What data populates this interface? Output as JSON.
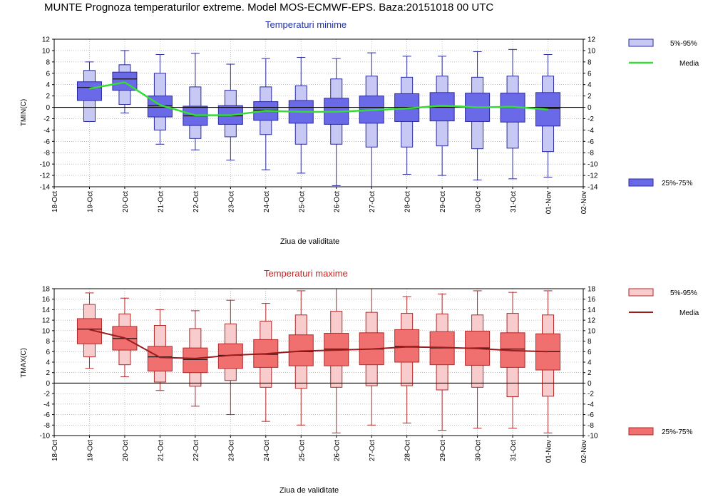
{
  "title": "MUNTE  Prognoza temperaturilor extreme.  Model MOS-ECMWF-EPS. Baza:20151018 00 UTC",
  "colors": {
    "min_light": "#c8c8f4",
    "min_dark": "#6a6ae8",
    "min_stroke": "#2a2a9e",
    "min_mean": "#33dd33",
    "max_light": "#f8cccc",
    "max_dark": "#f07070",
    "max_stroke": "#b02828",
    "max_mean": "#9a1c1c",
    "zero_line": "#000000",
    "grid": "#999999"
  },
  "chart_data": [
    {
      "type": "boxplot",
      "title": "Temperaturi minime",
      "xlabel": "Ziua de validitate",
      "ylabel": "TMIN(C)",
      "ylim": [
        -14,
        12
      ],
      "yticks": [
        12,
        10,
        8,
        6,
        4,
        2,
        0,
        -2,
        -4,
        -6,
        -8,
        -10,
        -12,
        -14
      ],
      "xticks": [
        "18-Oct",
        "19-Oct",
        "20-Oct",
        "21-Oct",
        "22-Oct",
        "23-Oct",
        "24-Oct",
        "25-Oct",
        "26-Oct",
        "27-Oct",
        "28-Oct",
        "29-Oct",
        "30-Oct",
        "31-Oct",
        "01-Nov",
        "02-Nov"
      ],
      "grid": true,
      "legend": [
        {
          "label": "5%-95%",
          "position": "top-right"
        },
        {
          "label": "Media",
          "position": "top-right"
        },
        {
          "label": "25%-75%",
          "position": "bottom-right"
        }
      ],
      "boxes": [
        {
          "day": "19-Oct",
          "p5": -2.5,
          "p25": 1.2,
          "median": 3.5,
          "p75": 4.5,
          "p95": 6.5,
          "min": -2.5,
          "max": 8.0,
          "mean": 3.3
        },
        {
          "day": "20-Oct",
          "p5": 0.5,
          "p25": 3.0,
          "median": 5.0,
          "p75": 6.2,
          "p95": 7.5,
          "min": -1.0,
          "max": 10.0,
          "mean": 4.4
        },
        {
          "day": "21-Oct",
          "p5": -4.0,
          "p25": -1.7,
          "median": 0.3,
          "p75": 2.0,
          "p95": 6.0,
          "min": -6.5,
          "max": 9.3,
          "mean": 0.4
        },
        {
          "day": "22-Oct",
          "p5": -5.5,
          "p25": -3.2,
          "median": -1.5,
          "p75": 0.2,
          "p95": 3.6,
          "min": -7.5,
          "max": 9.5,
          "mean": -1.4
        },
        {
          "day": "23-Oct",
          "p5": -5.2,
          "p25": -3.0,
          "median": -1.5,
          "p75": 0.3,
          "p95": 3.0,
          "min": -9.3,
          "max": 7.6,
          "mean": -1.4
        },
        {
          "day": "24-Oct",
          "p5": -4.8,
          "p25": -2.3,
          "median": -0.5,
          "p75": 1.0,
          "p95": 3.6,
          "min": -11.0,
          "max": 8.6,
          "mean": -0.6
        },
        {
          "day": "25-Oct",
          "p5": -6.5,
          "p25": -2.8,
          "median": -0.8,
          "p75": 1.2,
          "p95": 3.8,
          "min": -11.6,
          "max": 8.8,
          "mean": -0.8
        },
        {
          "day": "26-Oct",
          "p5": -6.5,
          "p25": -3.0,
          "median": -0.8,
          "p75": 1.6,
          "p95": 5.0,
          "min": -13.8,
          "max": 8.6,
          "mean": -0.8
        },
        {
          "day": "27-Oct",
          "p5": -7.0,
          "p25": -2.8,
          "median": -0.5,
          "p75": 2.0,
          "p95": 5.5,
          "min": -14.0,
          "max": 9.6,
          "mean": -0.5
        },
        {
          "day": "28-Oct",
          "p5": -7.0,
          "p25": -2.5,
          "median": -0.2,
          "p75": 2.4,
          "p95": 5.3,
          "min": -11.8,
          "max": 9.0,
          "mean": -0.2
        },
        {
          "day": "29-Oct",
          "p5": -6.8,
          "p25": -2.4,
          "median": 0.2,
          "p75": 2.6,
          "p95": 5.5,
          "min": -12.0,
          "max": 9.0,
          "mean": 0.3
        },
        {
          "day": "30-Oct",
          "p5": -7.3,
          "p25": -2.5,
          "median": 0.0,
          "p75": 2.5,
          "p95": 5.3,
          "min": -12.8,
          "max": 9.8,
          "mean": 0.0
        },
        {
          "day": "31-Oct",
          "p5": -7.2,
          "p25": -2.6,
          "median": 0.0,
          "p75": 2.5,
          "p95": 5.5,
          "min": -12.6,
          "max": 10.2,
          "mean": 0.1
        },
        {
          "day": "01-Nov",
          "p5": -7.8,
          "p25": -3.3,
          "median": -0.2,
          "p75": 2.6,
          "p95": 5.5,
          "min": -12.3,
          "max": 9.3,
          "mean": -0.4
        }
      ]
    },
    {
      "type": "boxplot",
      "title": "Temperaturi maxime",
      "xlabel": "Ziua de validitate",
      "ylabel": "TMAX(C)",
      "ylim": [
        -10,
        18
      ],
      "yticks": [
        18,
        16,
        14,
        12,
        10,
        8,
        6,
        4,
        2,
        0,
        -2,
        -4,
        -6,
        -8,
        -10
      ],
      "xticks": [
        "18-Oct",
        "19-Oct",
        "20-Oct",
        "21-Oct",
        "22-Oct",
        "23-Oct",
        "24-Oct",
        "25-Oct",
        "26-Oct",
        "27-Oct",
        "28-Oct",
        "29-Oct",
        "30-Oct",
        "31-Oct",
        "01-Nov",
        "02-Nov"
      ],
      "grid": true,
      "legend": [
        {
          "label": "5%-95%",
          "position": "top-right"
        },
        {
          "label": "Media",
          "position": "top-right"
        },
        {
          "label": "25%-75%",
          "position": "bottom-right"
        }
      ],
      "boxes": [
        {
          "day": "19-Oct",
          "p5": 5.0,
          "p25": 7.5,
          "median": 10.3,
          "p75": 12.3,
          "p95": 15.0,
          "min": 2.8,
          "max": 17.2,
          "mean": 10.2
        },
        {
          "day": "20-Oct",
          "p5": 3.5,
          "p25": 6.3,
          "median": 8.5,
          "p75": 10.8,
          "p95": 13.2,
          "min": 1.2,
          "max": 16.2,
          "mean": 8.6
        },
        {
          "day": "21-Oct",
          "p5": 0.2,
          "p25": 2.3,
          "median": 5.0,
          "p75": 7.0,
          "p95": 11.0,
          "min": -1.4,
          "max": 14.0,
          "mean": 4.9
        },
        {
          "day": "22-Oct",
          "p5": -0.6,
          "p25": 2.0,
          "median": 4.5,
          "p75": 6.7,
          "p95": 10.4,
          "min": -4.4,
          "max": 13.8,
          "mean": 4.7
        },
        {
          "day": "23-Oct",
          "p5": 0.5,
          "p25": 2.8,
          "median": 5.3,
          "p75": 7.5,
          "p95": 11.3,
          "min": -6.0,
          "max": 15.8,
          "mean": 5.3
        },
        {
          "day": "24-Oct",
          "p5": -0.8,
          "p25": 3.0,
          "median": 5.5,
          "p75": 8.3,
          "p95": 11.8,
          "min": -7.3,
          "max": 15.2,
          "mean": 5.6
        },
        {
          "day": "25-Oct",
          "p5": -1.0,
          "p25": 3.3,
          "median": 6.0,
          "p75": 9.2,
          "p95": 13.0,
          "min": -8.0,
          "max": 17.6,
          "mean": 6.1
        },
        {
          "day": "26-Oct",
          "p5": -0.8,
          "p25": 3.3,
          "median": 6.5,
          "p75": 9.5,
          "p95": 13.7,
          "min": -9.5,
          "max": 18.0,
          "mean": 6.3
        },
        {
          "day": "27-Oct",
          "p5": -0.5,
          "p25": 3.5,
          "median": 6.5,
          "p75": 9.6,
          "p95": 13.5,
          "min": -8.0,
          "max": 18.0,
          "mean": 6.5
        },
        {
          "day": "28-Oct",
          "p5": -0.5,
          "p25": 4.0,
          "median": 7.0,
          "p75": 10.2,
          "p95": 13.3,
          "min": -7.6,
          "max": 16.5,
          "mean": 6.9
        },
        {
          "day": "29-Oct",
          "p5": -1.3,
          "p25": 3.5,
          "median": 6.7,
          "p75": 9.8,
          "p95": 13.2,
          "min": -9.0,
          "max": 17.0,
          "mean": 6.8
        },
        {
          "day": "30-Oct",
          "p5": -0.8,
          "p25": 3.4,
          "median": 6.7,
          "p75": 9.9,
          "p95": 13.0,
          "min": -8.6,
          "max": 17.6,
          "mean": 6.6
        },
        {
          "day": "31-Oct",
          "p5": -2.6,
          "p25": 3.0,
          "median": 6.5,
          "p75": 9.6,
          "p95": 13.3,
          "min": -8.6,
          "max": 17.3,
          "mean": 6.2
        },
        {
          "day": "01-Nov",
          "p5": -2.5,
          "p25": 2.5,
          "median": 6.0,
          "p75": 9.4,
          "p95": 13.0,
          "min": -9.5,
          "max": 17.6,
          "mean": 6.0
        }
      ]
    }
  ]
}
